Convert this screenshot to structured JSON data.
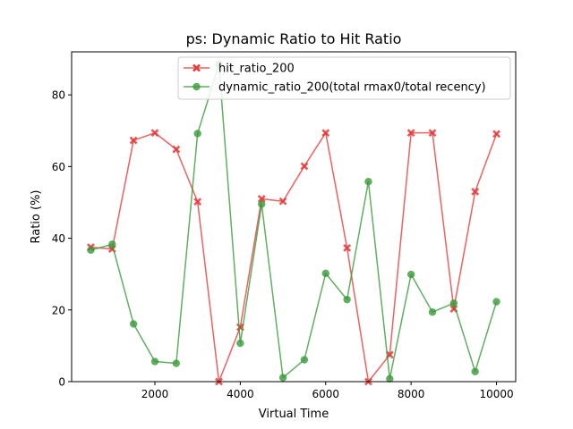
{
  "chart_data": {
    "type": "line",
    "title": "ps: Dynamic Ratio to Hit Ratio",
    "xlabel": "Virtual Time",
    "ylabel": "Ratio (%)",
    "xlim": [
      50,
      10450
    ],
    "ylim": [
      0,
      92
    ],
    "xticks": [
      2000,
      4000,
      6000,
      8000,
      10000
    ],
    "yticks": [
      0,
      20,
      40,
      60,
      80
    ],
    "x": [
      500,
      1000,
      1500,
      2000,
      2500,
      3000,
      3500,
      4000,
      4500,
      5000,
      5500,
      6000,
      6500,
      7000,
      7500,
      8000,
      8500,
      9000,
      9500,
      10000
    ],
    "legend_position": "upper-center",
    "series": [
      {
        "name": "hit_ratio_200",
        "color": "#e83a3a",
        "marker": "x",
        "values": [
          37.5,
          37,
          67.3,
          69.4,
          64.8,
          50.2,
          0,
          15.2,
          51,
          50.3,
          60.1,
          69.4,
          37.3,
          0,
          7.5,
          69.4,
          69.4,
          20.3,
          53,
          69.1
        ]
      },
      {
        "name": "dynamic_ratio_200(total rmax0/total recency)",
        "color": "#3a9a3a",
        "marker": "o",
        "values": [
          36.7,
          38.3,
          16.1,
          5.6,
          5.1,
          69.2,
          88.5,
          10.7,
          49.5,
          1.1,
          6.1,
          30.2,
          22.9,
          55.8,
          0.8,
          29.9,
          19.4,
          21.9,
          2.8,
          22.3
        ]
      }
    ]
  }
}
